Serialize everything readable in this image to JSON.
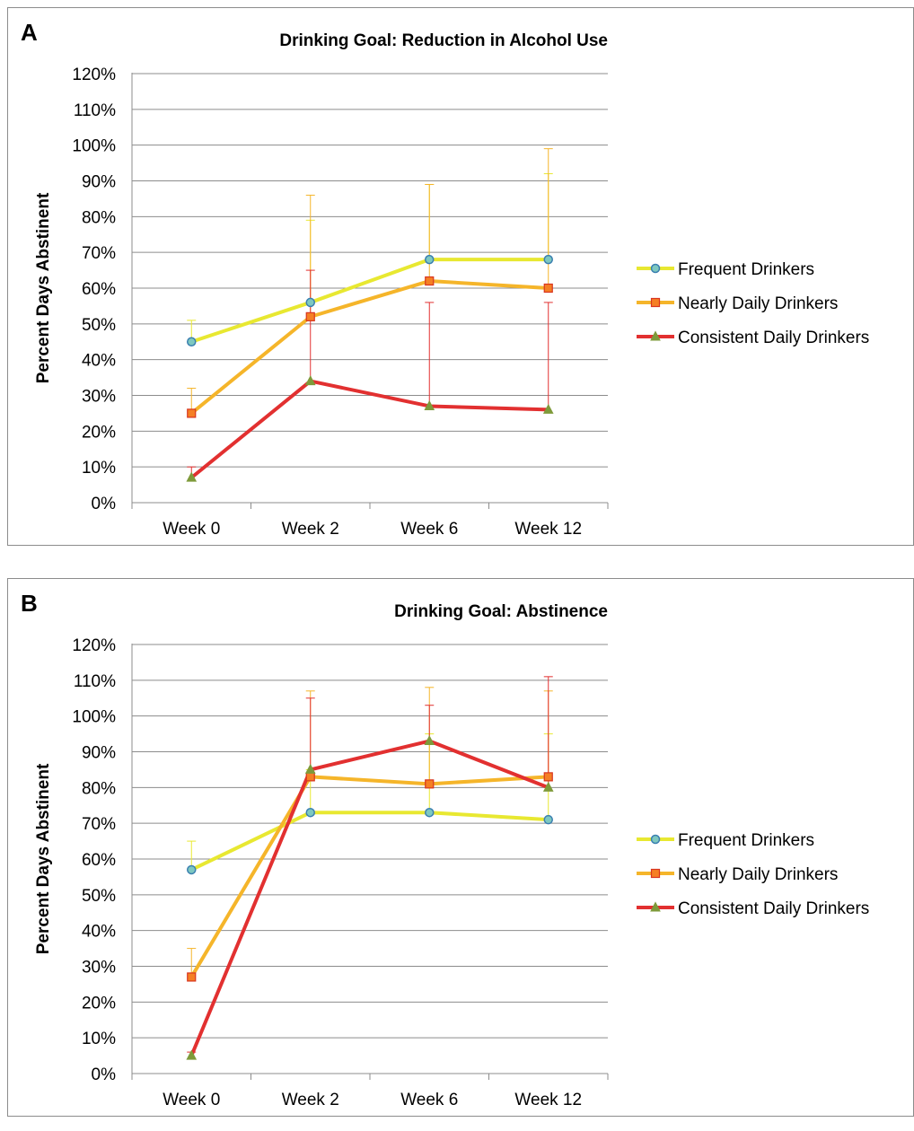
{
  "chart_data": [
    {
      "type": "line",
      "panel_letter": "A",
      "title": "Drinking Goal: Reduction in Alcohol Use",
      "ylabel": "Percent Days Abstinent",
      "xlabel": "",
      "categories": [
        "Week 0",
        "Week 2",
        "Week 6",
        "Week 12"
      ],
      "ylim": [
        0,
        120
      ],
      "yticks": [
        "0%",
        "10%",
        "20%",
        "30%",
        "40%",
        "50%",
        "60%",
        "70%",
        "80%",
        "90%",
        "100%",
        "110%",
        "120%"
      ],
      "grid": true,
      "legend_position": "right",
      "series": [
        {
          "name": "Frequent Drinkers",
          "values": [
            45,
            56,
            68,
            68
          ],
          "error_upper": [
            51,
            79,
            89,
            92
          ],
          "color": "#e8e831",
          "marker": "circle",
          "marker_fill": "#7ec8c0",
          "marker_stroke": "#3a7fb0"
        },
        {
          "name": "Nearly Daily Drinkers",
          "values": [
            25,
            52,
            62,
            60
          ],
          "error_upper": [
            32,
            86,
            89,
            99
          ],
          "color": "#f5b52a",
          "marker": "square",
          "marker_fill": "#f57f24",
          "marker_stroke": "#d8351f"
        },
        {
          "name": "Consistent Daily Drinkers",
          "values": [
            7,
            34,
            27,
            26
          ],
          "error_upper": [
            10,
            65,
            56,
            56
          ],
          "color": "#e23030",
          "marker": "triangle",
          "marker_fill": "#7e9a3a",
          "marker_stroke": "#7e9a3a"
        }
      ]
    },
    {
      "type": "line",
      "panel_letter": "B",
      "title": "Drinking Goal: Abstinence",
      "ylabel": "Percent Days Abstinent",
      "xlabel": "",
      "categories": [
        "Week 0",
        "Week 2",
        "Week 6",
        "Week 12"
      ],
      "ylim": [
        0,
        120
      ],
      "yticks": [
        "0%",
        "10%",
        "20%",
        "30%",
        "40%",
        "50%",
        "60%",
        "70%",
        "80%",
        "90%",
        "100%",
        "110%",
        "120%"
      ],
      "grid": true,
      "legend_position": "right",
      "series": [
        {
          "name": "Frequent Drinkers",
          "values": [
            57,
            73,
            73,
            71
          ],
          "error_upper": [
            65,
            85,
            95,
            95
          ],
          "color": "#e8e831",
          "marker": "circle",
          "marker_fill": "#7ec8c0",
          "marker_stroke": "#3a7fb0"
        },
        {
          "name": "Nearly Daily Drinkers",
          "values": [
            27,
            83,
            81,
            83
          ],
          "error_upper": [
            35,
            107,
            108,
            107
          ],
          "color": "#f5b52a",
          "marker": "square",
          "marker_fill": "#f57f24",
          "marker_stroke": "#d8351f"
        },
        {
          "name": "Consistent Daily Drinkers",
          "values": [
            5,
            85,
            93,
            80
          ],
          "error_upper": [
            6,
            105,
            103,
            111
          ],
          "color": "#e23030",
          "marker": "triangle",
          "marker_fill": "#7e9a3a",
          "marker_stroke": "#7e9a3a"
        }
      ]
    }
  ]
}
